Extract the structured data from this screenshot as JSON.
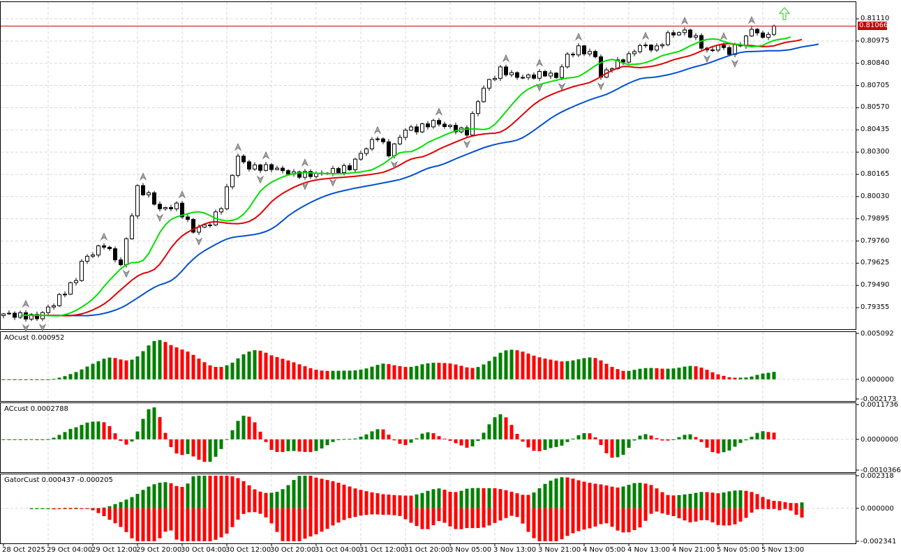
{
  "chart": {
    "bid_price": "0.81066",
    "colors": {
      "bull": "#ffffff",
      "bear": "#000000",
      "jaw": "#0050d0",
      "teeth": "#e00000",
      "lips": "#00e000",
      "up_bar": "#008000",
      "down_bar": "#ff0000",
      "bid": "#c40000",
      "grid": "#d8d8d8"
    },
    "price_axis": [
      "0.81110",
      "0.80975",
      "0.80840",
      "0.80705",
      "0.80570",
      "0.80435",
      "0.80300",
      "0.80165",
      "0.80030",
      "0.79895",
      "0.79760",
      "0.79625",
      "0.79490",
      "0.79355"
    ],
    "price_path": [
      [
        0,
        0.79317
      ],
      [
        6,
        0.79296
      ],
      [
        9,
        0.7938
      ],
      [
        13,
        0.79529
      ],
      [
        14,
        0.79635
      ],
      [
        18,
        0.7974
      ],
      [
        21,
        0.79613
      ],
      [
        24,
        0.8008
      ],
      [
        26,
        0.80037
      ],
      [
        28,
        0.79952
      ],
      [
        31,
        0.79974
      ],
      [
        34,
        0.79825
      ],
      [
        37,
        0.79868
      ],
      [
        39,
        0.79974
      ],
      [
        42,
        0.8027
      ],
      [
        44,
        0.80207
      ],
      [
        48,
        0.80207
      ],
      [
        52,
        0.80165
      ],
      [
        56,
        0.80165
      ],
      [
        59,
        0.80186
      ],
      [
        62,
        0.80207
      ],
      [
        64,
        0.80292
      ],
      [
        67,
        0.80398
      ],
      [
        69,
        0.80292
      ],
      [
        72,
        0.8044
      ],
      [
        74,
        0.8044
      ],
      [
        77,
        0.80483
      ],
      [
        79,
        0.80461
      ],
      [
        83,
        0.80419
      ],
      [
        84,
        0.80525
      ],
      [
        86,
        0.80694
      ],
      [
        89,
        0.808
      ],
      [
        92,
        0.80758
      ],
      [
        94,
        0.80758
      ],
      [
        97,
        0.80779
      ],
      [
        99,
        0.80758
      ],
      [
        101,
        0.80885
      ],
      [
        103,
        0.80928
      ],
      [
        106,
        0.80885
      ],
      [
        107,
        0.80758
      ],
      [
        109,
        0.80822
      ],
      [
        112,
        0.80885
      ],
      [
        114,
        0.80949
      ],
      [
        117,
        0.80928
      ],
      [
        119,
        0.81012
      ],
      [
        122,
        0.81034
      ],
      [
        124,
        0.80991
      ],
      [
        126,
        0.80907
      ],
      [
        128,
        0.80949
      ],
      [
        130,
        0.80907
      ],
      [
        133,
        0.80991
      ],
      [
        134,
        0.81055
      ],
      [
        136,
        0.80991
      ],
      [
        138,
        0.81066
      ]
    ]
  },
  "indicators": {
    "ao": {
      "title": "AOcust 0.000952",
      "axis": [
        "0.005092",
        "0.000000",
        "-0.002173"
      ],
      "max": 0.005092,
      "min": -0.002173
    },
    "ac": {
      "title": "ACcust 0.0002788",
      "axis": [
        "0.0011736",
        "0.0000000",
        "-0.0010366"
      ],
      "max": 0.0011736,
      "min": -0.0010366
    },
    "gator": {
      "title": "GatorCust 0.000437 -0.000205",
      "axis": [
        "0.002318",
        "0.000000",
        "-0.002341"
      ],
      "max": 0.002318,
      "min": -0.002341
    }
  },
  "time_axis": [
    "28 Oct 2025",
    "29 Oct 04:00",
    "29 Oct 12:00",
    "29 Oct 20:00",
    "30 Oct 04:00",
    "30 Oct 12:00",
    "30 Oct 20:00",
    "31 Oct 04:00",
    "31 Oct 12:00",
    "31 Oct 20:00",
    "3 Nov 05:00",
    "3 Nov 13:00",
    "3 Nov 21:00",
    "4 Nov 05:00",
    "4 Nov 13:00",
    "4 Nov 21:00",
    "5 Nov 05:00",
    "5 Nov 13:00"
  ]
}
